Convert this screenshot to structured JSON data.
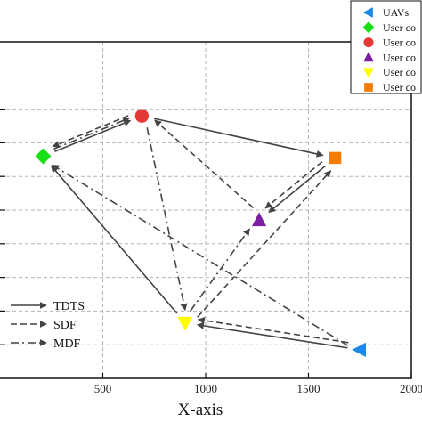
{
  "chart_data": {
    "type": "scatter",
    "xlabel": "X-axis",
    "xlim": [
      0,
      2000
    ],
    "ylim": [
      0,
      10
    ],
    "x_ticks": [
      500,
      1000,
      1500,
      2000
    ],
    "x_tick_labels": [
      "500",
      "1000",
      "1500",
      "2000"
    ],
    "y_ticks": [
      1,
      2,
      3,
      4,
      5,
      6,
      7,
      8
    ],
    "grid": true,
    "points": [
      {
        "name": "UAVs",
        "marker": "triangle-left",
        "color": "#1e88e5",
        "x": 1750,
        "y": 0.85
      },
      {
        "name": "User co",
        "marker": "diamond",
        "color": "#17e017",
        "x": 210,
        "y": 6.6
      },
      {
        "name": "User co",
        "marker": "circle",
        "color": "#e53935",
        "x": 690,
        "y": 7.8
      },
      {
        "name": "User co",
        "marker": "triangle-up",
        "color": "#7b1fa2",
        "x": 1260,
        "y": 4.7
      },
      {
        "name": "User co",
        "marker": "triangle-down",
        "color": "#ffff00",
        "x": 900,
        "y": 1.65
      },
      {
        "name": "User co",
        "marker": "square",
        "color": "#f57c00",
        "x": 1630,
        "y": 6.55
      }
    ],
    "routes": [
      {
        "name": "TDTS",
        "style": "solid",
        "legs": [
          [
            1750,
            0.85,
            900,
            1.65
          ],
          [
            900,
            1.65,
            210,
            6.6
          ],
          [
            210,
            6.6,
            690,
            7.8
          ],
          [
            690,
            7.8,
            1630,
            6.55
          ],
          [
            1630,
            6.55,
            1260,
            4.7
          ]
        ]
      },
      {
        "name": "SDF",
        "style": "dashed",
        "legs": [
          [
            1750,
            0.85,
            900,
            1.65
          ],
          [
            900,
            1.65,
            1630,
            6.55
          ],
          [
            1630,
            6.55,
            1260,
            4.7
          ],
          [
            1260,
            4.7,
            690,
            7.8
          ],
          [
            690,
            7.8,
            210,
            6.6
          ]
        ]
      },
      {
        "name": "MDF",
        "style": "dashdot",
        "legs": [
          [
            1750,
            0.85,
            210,
            6.6
          ],
          [
            210,
            6.6,
            690,
            7.8
          ],
          [
            690,
            7.8,
            900,
            1.65
          ],
          [
            900,
            1.65,
            1260,
            4.7
          ]
        ]
      }
    ],
    "legend_markers": [
      {
        "label": "UAVs",
        "marker": "triangle-left",
        "color": "#1e88e5"
      },
      {
        "label": "User co",
        "marker": "diamond",
        "color": "#17e017"
      },
      {
        "label": "User co",
        "marker": "circle",
        "color": "#e53935"
      },
      {
        "label": "User co",
        "marker": "triangle-up",
        "color": "#7b1fa2"
      },
      {
        "label": "User co",
        "marker": "triangle-down",
        "color": "#ffff00"
      },
      {
        "label": "User co",
        "marker": "square",
        "color": "#f57c00"
      }
    ],
    "legend_markers_position": "top-right",
    "legend_lines": [
      {
        "label": "TDTS",
        "style": "solid"
      },
      {
        "label": "SDF",
        "style": "dashed"
      },
      {
        "label": "MDF",
        "style": "dashdot"
      }
    ],
    "legend_lines_position": "bottom-left",
    "line_color": "#444444"
  }
}
